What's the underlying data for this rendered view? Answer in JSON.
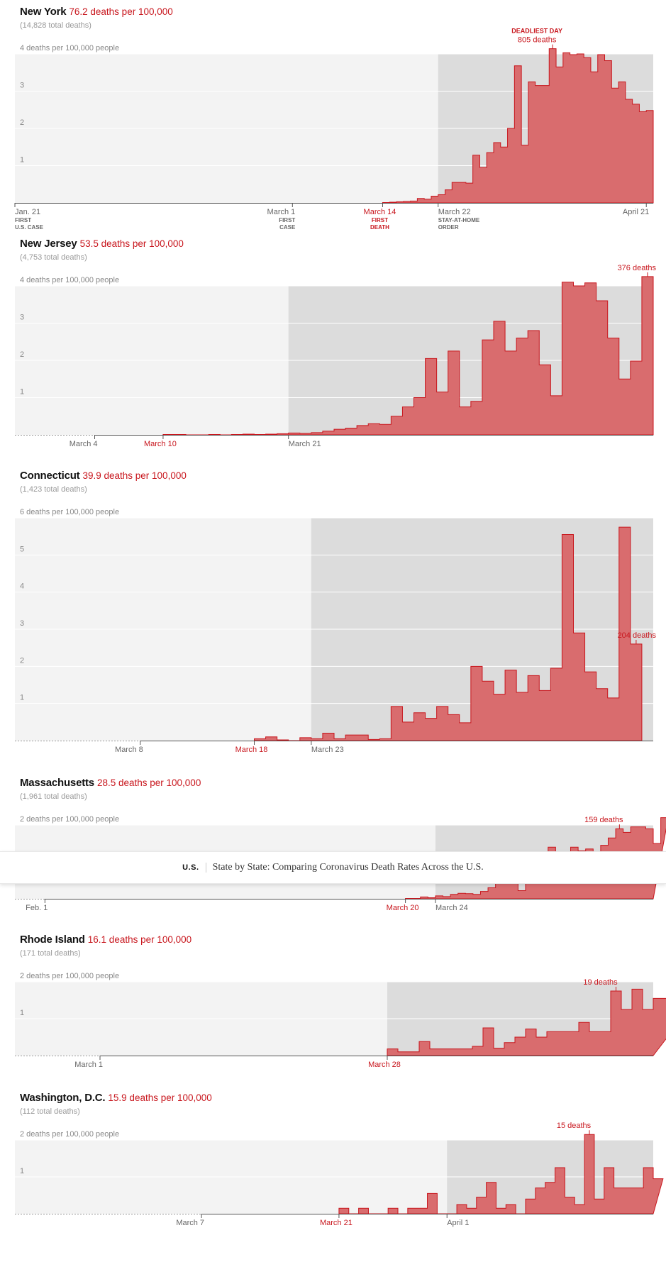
{
  "header_bar": {
    "section": "U.S.",
    "title": "State by State: Comparing Coronavirus Death Rates Across the U.S."
  },
  "colors": {
    "bar": "#d96c6e",
    "barStroke": "#c8161d",
    "accent": "#c8161d",
    "bgLight": "#f3f3f3",
    "bgDark": "#dcdcdc"
  },
  "chart_data": [
    {
      "type": "area",
      "state": "New York",
      "rate_label": "76.2 deaths per 100,000",
      "total_label": "(14,828 total deaths)",
      "ylabel_top": "4 deaths per 100,000 people",
      "ylim": [
        0,
        4
      ],
      "y_ticks": [
        "1",
        "2",
        "3"
      ],
      "x_range": [
        "2020-01-21",
        "2020-04-21"
      ],
      "stay_home_start": "2020-03-22",
      "peak_date": "2020-04-07",
      "peak_label": "805 deaths",
      "peak_title": "DEADLIEST DAY",
      "x_ticks": [
        {
          "date": "2020-01-21",
          "label": "Jan. 21",
          "sub": [
            "FIRST",
            "U.S. CASE"
          ],
          "color": "gray",
          "align": "left"
        },
        {
          "date": "2020-03-01",
          "label": "March 1",
          "sub": [
            "FIRST",
            "CASE"
          ],
          "color": "gray",
          "align": "right"
        },
        {
          "date": "2020-03-14",
          "label": "March 14",
          "sub": [
            "FIRST",
            "DEATH"
          ],
          "color": "red",
          "align": "center"
        },
        {
          "date": "2020-03-22",
          "label": "March 22",
          "sub": [
            "STAY-AT-HOME",
            "ORDER"
          ],
          "color": "gray",
          "align": "left"
        },
        {
          "date": "2020-04-21",
          "label": "April 21",
          "sub": [],
          "color": "gray",
          "align": "right"
        }
      ],
      "series_start": "2020-03-14",
      "values": [
        0.01,
        0.02,
        0.03,
        0.04,
        0.05,
        0.12,
        0.1,
        0.18,
        0.22,
        0.35,
        0.55,
        0.55,
        0.53,
        1.28,
        0.95,
        1.35,
        1.62,
        1.5,
        2.0,
        3.68,
        1.55,
        3.25,
        3.15,
        3.15,
        4.14,
        3.65,
        4.03,
        3.98,
        4.0,
        3.9,
        3.52,
        3.98,
        3.82,
        3.08,
        3.25,
        2.78,
        2.65,
        2.45,
        2.48
      ]
    },
    {
      "type": "area",
      "state": "New Jersey",
      "rate_label": "53.5 deaths per 100,000",
      "total_label": "(4,753 total deaths)",
      "ylabel_top": "4 deaths per 100,000 people",
      "ylim": [
        0,
        4
      ],
      "y_ticks": [
        "1",
        "2",
        "3"
      ],
      "x_range": [
        "2020-02-26",
        "2020-04-21"
      ],
      "stay_home_start": "2020-03-21",
      "peak_date": "2020-04-21",
      "peak_label": "376 deaths",
      "x_ticks": [
        {
          "date": "2020-03-04",
          "label": "March 4",
          "sub": [],
          "color": "gray",
          "align": "right"
        },
        {
          "date": "2020-03-10",
          "label": "March 10",
          "sub": [],
          "color": "red",
          "align": "center"
        },
        {
          "date": "2020-03-21",
          "label": "March 21",
          "sub": [],
          "color": "gray",
          "align": "left"
        }
      ],
      "series_start": "2020-03-10",
      "values": [
        0.01,
        0.01,
        0,
        0,
        0.01,
        0,
        0.01,
        0.02,
        0.01,
        0.02,
        0.03,
        0.05,
        0.04,
        0.06,
        0.1,
        0.15,
        0.18,
        0.25,
        0.3,
        0.28,
        0.5,
        0.75,
        1.0,
        2.05,
        1.15,
        2.25,
        0.75,
        0.9,
        2.55,
        3.05,
        2.25,
        2.6,
        2.8,
        1.88,
        1.05,
        4.1,
        4.0,
        4.08,
        3.6,
        2.6,
        1.5,
        1.98,
        4.25
      ]
    },
    {
      "type": "area",
      "state": "Connecticut",
      "rate_label": "39.9 deaths per 100,000",
      "total_label": "(1,423 total deaths)",
      "ylabel_top": "6 deaths per 100,000 people",
      "ylim": [
        0,
        6
      ],
      "y_ticks": [
        "1",
        "2",
        "3",
        "4",
        "5"
      ],
      "x_range": [
        "2020-02-26",
        "2020-04-21"
      ],
      "stay_home_start": "2020-03-23",
      "peak_date": "2020-04-20",
      "peak_label": "204 deaths",
      "x_ticks": [
        {
          "date": "2020-03-08",
          "label": "March 8",
          "sub": [],
          "color": "gray",
          "align": "right"
        },
        {
          "date": "2020-03-18",
          "label": "March 18",
          "sub": [],
          "color": "red",
          "align": "center"
        },
        {
          "date": "2020-03-23",
          "label": "March 23",
          "sub": [],
          "color": "gray",
          "align": "left"
        }
      ],
      "series_start": "2020-03-18",
      "values": [
        0.05,
        0.1,
        0.02,
        0,
        0.08,
        0.05,
        0.2,
        0.05,
        0.15,
        0.15,
        0.03,
        0.05,
        0.92,
        0.5,
        0.75,
        0.6,
        0.92,
        0.7,
        0.48,
        2.0,
        1.6,
        1.25,
        1.9,
        1.3,
        1.75,
        1.35,
        1.95,
        5.55,
        2.9,
        1.85,
        1.4,
        1.15,
        5.75,
        2.6
      ]
    },
    {
      "type": "area",
      "state": "Massachusetts",
      "rate_label": "28.5 deaths per 100,000",
      "total_label": "(1,961 total deaths)",
      "ylabel_top": "2 deaths per 100,000 people",
      "ylim": [
        0,
        2
      ],
      "y_ticks": [
        "1"
      ],
      "x_range": [
        "2020-01-28",
        "2020-04-21"
      ],
      "stay_home_start": "2020-03-24",
      "peak_date": "2020-04-17",
      "peak_label": "159 deaths",
      "x_ticks": [
        {
          "date": "2020-02-01",
          "label": "Feb. 1",
          "sub": [],
          "color": "gray",
          "align": "right"
        },
        {
          "date": "2020-03-20",
          "label": "March 20",
          "sub": [],
          "color": "red",
          "align": "center"
        },
        {
          "date": "2020-03-24",
          "label": "March 24",
          "sub": [],
          "color": "gray",
          "align": "left"
        }
      ],
      "series_start": "2020-03-20",
      "values": [
        0.01,
        0.01,
        0.05,
        0.03,
        0.08,
        0.06,
        0.12,
        0.15,
        0.14,
        0.12,
        0.2,
        0.3,
        0.45,
        0.6,
        0.75,
        0.22,
        0.5,
        0.7,
        0.58,
        1.4,
        1.25,
        1.05,
        1.4,
        1.3,
        1.35,
        1.25,
        1.45,
        1.65,
        1.9,
        1.8,
        1.95,
        1.95,
        1.9,
        1.5,
        2.2
      ]
    },
    {
      "type": "area",
      "state": "Rhode Island",
      "rate_label": "16.1 deaths per 100,000",
      "total_label": "(171 total deaths)",
      "ylabel_top": "2 deaths per 100,000 people",
      "ylim": [
        0,
        2
      ],
      "y_ticks": [
        "1"
      ],
      "x_range": [
        "2020-02-22",
        "2020-04-21"
      ],
      "stay_home_start": "2020-03-28",
      "peak_date": "2020-04-18",
      "peak_label": "19 deaths",
      "x_ticks": [
        {
          "date": "2020-03-01",
          "label": "March 1",
          "sub": [],
          "color": "gray",
          "align": "right"
        },
        {
          "date": "2020-03-28",
          "label": "March 28",
          "sub": [],
          "color": "red",
          "align": "center"
        }
      ],
      "series_start": "2020-03-28",
      "values": [
        0.18,
        0.1,
        0.1,
        0.38,
        0.18,
        0.18,
        0.18,
        0.18,
        0.25,
        0.75,
        0.2,
        0.35,
        0.5,
        0.72,
        0.5,
        0.65,
        0.65,
        0.65,
        0.9,
        0.65,
        0.65,
        1.75,
        1.25,
        1.8,
        1.25,
        1.55,
        1.55,
        0.45,
        1.5
      ]
    },
    {
      "type": "area",
      "state": "Washington, D.C.",
      "rate_label": "15.9 deaths per 100,000",
      "total_label": "(112 total deaths)",
      "ylabel_top": "2 deaths per 100,000 people",
      "ylim": [
        0,
        2
      ],
      "y_ticks": [
        "1"
      ],
      "x_range": [
        "2020-02-17",
        "2020-04-21"
      ],
      "stay_home_start": "2020-04-01",
      "peak_date": "2020-04-15",
      "peak_label": "15 deaths",
      "x_ticks": [
        {
          "date": "2020-03-07",
          "label": "March 7",
          "sub": [],
          "color": "gray",
          "align": "right"
        },
        {
          "date": "2020-03-21",
          "label": "March 21",
          "sub": [],
          "color": "red",
          "align": "center"
        },
        {
          "date": "2020-04-01",
          "label": "April 1",
          "sub": [],
          "color": "gray",
          "align": "left"
        }
      ],
      "series_start": "2020-03-21",
      "values": [
        0.15,
        0,
        0.15,
        0,
        0,
        0.15,
        0,
        0.15,
        0.15,
        0.55,
        0,
        0,
        0.25,
        0.15,
        0.45,
        0.85,
        0.15,
        0.25,
        0,
        0.4,
        0.7,
        0.85,
        1.25,
        0.45,
        0.25,
        2.15,
        0.4,
        1.25,
        0.7,
        0.7,
        0.7,
        1.25,
        0.95
      ]
    }
  ]
}
